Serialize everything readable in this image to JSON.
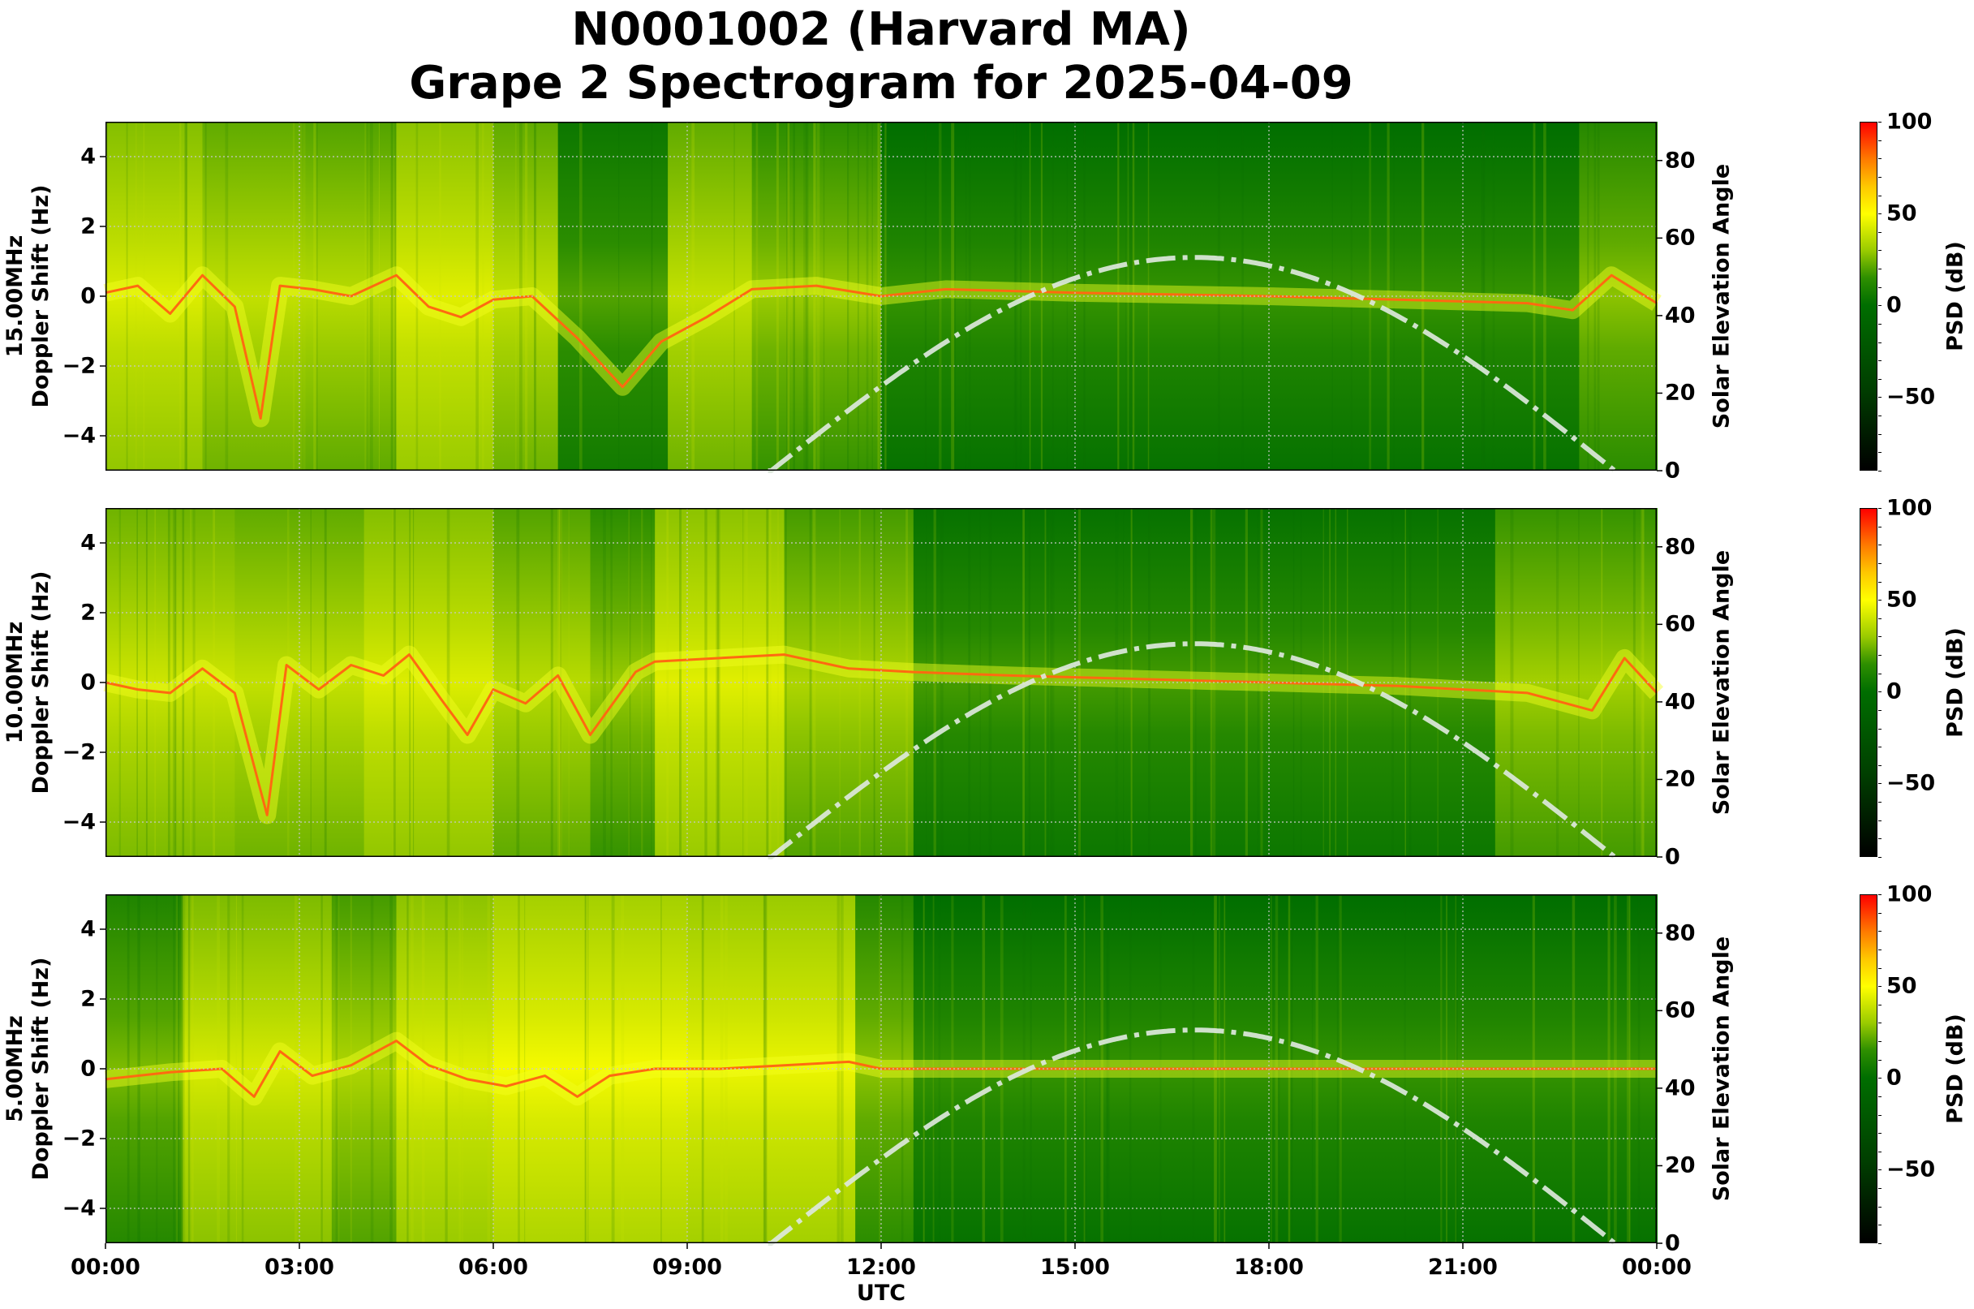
{
  "title": {
    "line1": "N0001002 (Harvard MA)",
    "line2": "Grape 2 Spectrogram for 2025-04-09"
  },
  "chart_data": [
    {
      "type": "heatmap",
      "title": "15.00MHz",
      "ylabel": "15.00MHz\nDoppler Shift (Hz)",
      "ylabel_line1": "15.00MHz",
      "ylabel_line2": "Doppler Shift (Hz)",
      "y2label": "Solar Elevation Angle",
      "xlabel": "",
      "ylim": [
        -5,
        5
      ],
      "y2lim": [
        0,
        90
      ],
      "yticks": [
        "4",
        "2",
        "0",
        "−2",
        "−4"
      ],
      "y2ticks": [
        "80",
        "60",
        "40",
        "20",
        "0"
      ],
      "colorbar": {
        "label": "PSD (dB)",
        "range": [
          -90,
          100
        ],
        "ticks": [
          "100",
          "50",
          "0",
          "−50"
        ]
      },
      "grid": true,
      "description": "Noisy ionospheric Doppler traces near 0 Hz (red/orange) from 00:00-06:30; broad diffuse yellow spreads 06:00-12:00 with a V-shaped trace dipping to about -4 Hz near 08:00; after 12:00 a steady trace near 0 Hz on dark green background with vertical interference streaks.",
      "regions": [
        {
          "t0": 0.0,
          "t1": 1.5,
          "level": 35
        },
        {
          "t0": 1.5,
          "t1": 3.0,
          "level": 30
        },
        {
          "t0": 3.0,
          "t1": 4.5,
          "level": 28
        },
        {
          "t0": 4.5,
          "t1": 6.0,
          "level": 36
        },
        {
          "t0": 6.0,
          "t1": 7.0,
          "level": 30
        },
        {
          "t0": 7.0,
          "t1": 8.7,
          "level": 12
        },
        {
          "t0": 8.7,
          "t1": 10.0,
          "level": 30
        },
        {
          "t0": 10.0,
          "t1": 12.0,
          "level": 22
        },
        {
          "t0": 12.0,
          "t1": 22.8,
          "level": 8
        },
        {
          "t0": 22.8,
          "t1": 24.0,
          "level": 20
        }
      ],
      "trace": [
        [
          0,
          0.1
        ],
        [
          0.5,
          0.3
        ],
        [
          1,
          -0.5
        ],
        [
          1.5,
          0.6
        ],
        [
          2,
          -0.3
        ],
        [
          2.4,
          -3.5
        ],
        [
          2.7,
          0.3
        ],
        [
          3.2,
          0.2
        ],
        [
          3.8,
          0.0
        ],
        [
          4.5,
          0.6
        ],
        [
          5.0,
          -0.3
        ],
        [
          5.5,
          -0.6
        ],
        [
          6.0,
          -0.1
        ],
        [
          6.6,
          0.0
        ],
        [
          7.3,
          -1.2
        ],
        [
          8.0,
          -2.6
        ],
        [
          8.6,
          -1.3
        ],
        [
          9.3,
          -0.6
        ],
        [
          10.0,
          0.2
        ],
        [
          11.0,
          0.3
        ],
        [
          12.0,
          0.0
        ],
        [
          13.0,
          0.2
        ],
        [
          15.0,
          0.1
        ],
        [
          18.0,
          0.0
        ],
        [
          20.0,
          -0.1
        ],
        [
          22.0,
          -0.2
        ],
        [
          22.7,
          -0.4
        ],
        [
          23.3,
          0.6
        ],
        [
          24.0,
          -0.2
        ]
      ]
    },
    {
      "type": "heatmap",
      "title": "10.00MHz",
      "ylabel": "10.00MHz\nDoppler Shift (Hz)",
      "ylabel_line1": "10.00MHz",
      "ylabel_line2": "Doppler Shift (Hz)",
      "y2label": "Solar Elevation Angle",
      "xlabel": "",
      "ylim": [
        -5,
        5
      ],
      "y2lim": [
        0,
        90
      ],
      "yticks": [
        "4",
        "2",
        "0",
        "−2",
        "−4"
      ],
      "y2ticks": [
        "80",
        "60",
        "40",
        "20",
        "0"
      ],
      "colorbar": {
        "label": "PSD (dB)",
        "range": [
          -90,
          100
        ],
        "ticks": [
          "100",
          "50",
          "0",
          "−50"
        ]
      },
      "grid": true,
      "description": "Strong multi-mode traces around 0 Hz between 00:00 and 08:30 with deep excursions to about -4 Hz near 02:30; diffuse yellow band 08:00-12:00; after 12:00 a steady trace near 0 to +0.5 Hz with green background; traces drift negative near 23:00.",
      "regions": [
        {
          "t0": 0.0,
          "t1": 2.0,
          "level": 32
        },
        {
          "t0": 2.0,
          "t1": 4.0,
          "level": 30
        },
        {
          "t0": 4.0,
          "t1": 6.0,
          "level": 35
        },
        {
          "t0": 6.0,
          "t1": 7.5,
          "level": 28
        },
        {
          "t0": 7.5,
          "t1": 8.5,
          "level": 22
        },
        {
          "t0": 8.5,
          "t1": 10.5,
          "level": 36
        },
        {
          "t0": 10.5,
          "t1": 12.5,
          "level": 26
        },
        {
          "t0": 12.5,
          "t1": 21.5,
          "level": 10
        },
        {
          "t0": 21.5,
          "t1": 24.0,
          "level": 24
        }
      ],
      "trace": [
        [
          0,
          0.0
        ],
        [
          0.5,
          -0.2
        ],
        [
          1.0,
          -0.3
        ],
        [
          1.5,
          0.4
        ],
        [
          2.0,
          -0.3
        ],
        [
          2.5,
          -3.8
        ],
        [
          2.8,
          0.5
        ],
        [
          3.3,
          -0.2
        ],
        [
          3.8,
          0.5
        ],
        [
          4.3,
          0.2
        ],
        [
          4.7,
          0.8
        ],
        [
          5.2,
          -0.5
        ],
        [
          5.6,
          -1.5
        ],
        [
          6.0,
          -0.2
        ],
        [
          6.5,
          -0.6
        ],
        [
          7.0,
          0.2
        ],
        [
          7.5,
          -1.5
        ],
        [
          8.2,
          0.3
        ],
        [
          8.5,
          0.6
        ],
        [
          10.5,
          0.8
        ],
        [
          11.5,
          0.4
        ],
        [
          12.5,
          0.3
        ],
        [
          14.0,
          0.2
        ],
        [
          16.0,
          0.1
        ],
        [
          18.0,
          0.0
        ],
        [
          20.0,
          -0.1
        ],
        [
          22.0,
          -0.3
        ],
        [
          23.0,
          -0.8
        ],
        [
          23.5,
          0.7
        ],
        [
          24.0,
          -0.3
        ]
      ]
    },
    {
      "type": "heatmap",
      "title": "5.00MHz",
      "ylabel": "5.00MHz\nDoppler Shift (Hz)",
      "ylabel_line1": "5.00MHz",
      "ylabel_line2": "Doppler Shift (Hz)",
      "y2label": "Solar Elevation Angle",
      "xlabel": "UTC",
      "ylim": [
        -5,
        5
      ],
      "y2lim": [
        0,
        90
      ],
      "yticks": [
        "4",
        "2",
        "0",
        "−2",
        "−4"
      ],
      "y2ticks": [
        "80",
        "60",
        "40",
        "20",
        "0"
      ],
      "colorbar": {
        "label": "PSD (dB)",
        "range": [
          -90,
          100
        ],
        "ticks": [
          "100",
          "50",
          "0",
          "−50"
        ]
      },
      "grid": true,
      "description": "Broad yellow diffuse signal 00:30-11:30 with wavy orange trace near 0 Hz; after ~11:45 background abruptly becomes uniform green with a faint steady carrier line at 0 Hz.",
      "regions": [
        {
          "t0": 0.0,
          "t1": 1.2,
          "level": 18
        },
        {
          "t0": 1.2,
          "t1": 3.5,
          "level": 34
        },
        {
          "t0": 3.5,
          "t1": 4.5,
          "level": 26
        },
        {
          "t0": 4.5,
          "t1": 6.0,
          "level": 36
        },
        {
          "t0": 6.0,
          "t1": 9.0,
          "level": 40
        },
        {
          "t0": 9.0,
          "t1": 11.6,
          "level": 38
        },
        {
          "t0": 11.6,
          "t1": 12.5,
          "level": 20
        },
        {
          "t0": 12.5,
          "t1": 24.0,
          "level": 8
        }
      ],
      "trace": [
        [
          0,
          -0.3
        ],
        [
          1.0,
          -0.1
        ],
        [
          1.8,
          0.0
        ],
        [
          2.3,
          -0.8
        ],
        [
          2.7,
          0.5
        ],
        [
          3.2,
          -0.2
        ],
        [
          3.8,
          0.1
        ],
        [
          4.5,
          0.8
        ],
        [
          5.0,
          0.1
        ],
        [
          5.6,
          -0.3
        ],
        [
          6.2,
          -0.5
        ],
        [
          6.8,
          -0.2
        ],
        [
          7.3,
          -0.8
        ],
        [
          7.8,
          -0.2
        ],
        [
          8.5,
          0.0
        ],
        [
          9.5,
          0.0
        ],
        [
          10.5,
          0.1
        ],
        [
          11.5,
          0.2
        ],
        [
          12.0,
          0.0
        ],
        [
          24.0,
          0.0
        ]
      ]
    }
  ],
  "solar_elevation": {
    "label": "Solar Elevation Angle",
    "line_style": "dash-dot",
    "color": "#dde8dc",
    "rise_utc_hours": 10.3,
    "set_utc_hours": 23.35,
    "peak_utc_hours": 16.85,
    "peak_degrees": 55
  },
  "x_axis": {
    "label": "UTC",
    "ticks": [
      "00:00",
      "03:00",
      "06:00",
      "09:00",
      "12:00",
      "15:00",
      "18:00",
      "21:00",
      "00:00"
    ],
    "range_hours": [
      0,
      24
    ]
  },
  "colors": {
    "cmap_stops": [
      {
        "value": -90,
        "color": "#000000"
      },
      {
        "value": -45,
        "color": "#003f00"
      },
      {
        "value": 0,
        "color": "#006e00"
      },
      {
        "value": 15,
        "color": "#2e8f00"
      },
      {
        "value": 30,
        "color": "#9acb00"
      },
      {
        "value": 50,
        "color": "#ffff00"
      },
      {
        "value": 65,
        "color": "#ffc800"
      },
      {
        "value": 80,
        "color": "#ff7a00"
      },
      {
        "value": 100,
        "color": "#ff0000"
      }
    ],
    "trace": "#ff6a10",
    "grid": "#c8c8c8"
  }
}
